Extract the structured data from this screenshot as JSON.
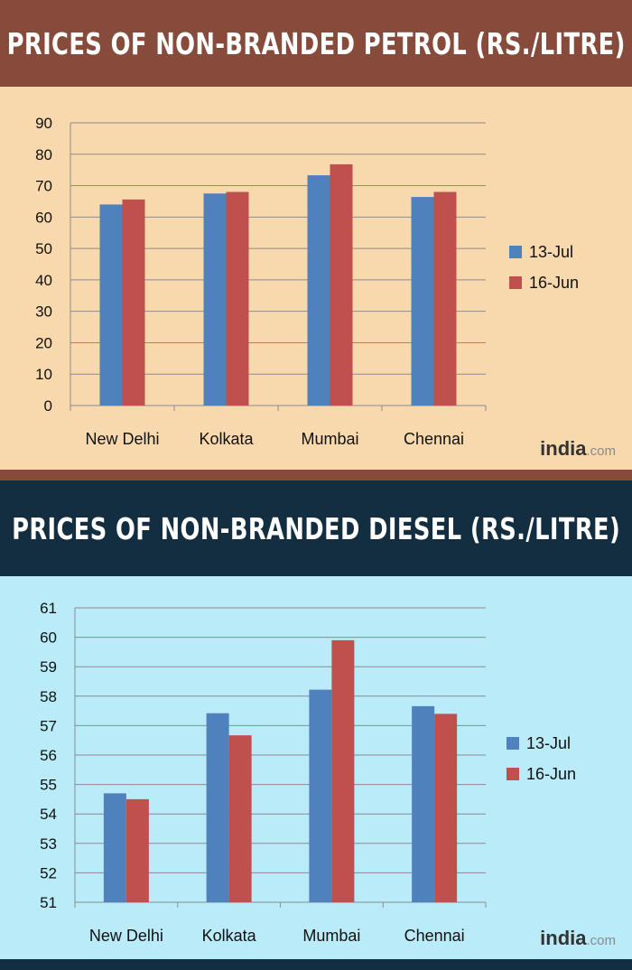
{
  "charts": {
    "petrol": {
      "title": "PRICES OF NON-BRANDED PETROL (RS./LITRE)",
      "logo": {
        "brand": "india",
        "tld": ".com"
      }
    },
    "diesel": {
      "title": "PRICES OF NON-BRANDED DIESEL  (RS./LITRE)",
      "logo": {
        "brand": "india",
        "tld": ".com"
      }
    }
  },
  "colors": {
    "series_13jul": "#4f81bd",
    "series_16jun": "#c0504d",
    "petrol_band": "#864b3a",
    "petrol_bg": "#f8d9ad",
    "diesel_band": "#132e40",
    "diesel_bg": "#b9ebf9",
    "gridline": "#8c8c8c"
  },
  "chart_data": [
    {
      "type": "bar",
      "title": "PRICES OF NON-BRANDED PETROL (RS./LITRE)",
      "categories": [
        "New Delhi",
        "Kolkata",
        "Mumbai",
        "Chennai"
      ],
      "series": [
        {
          "name": "13-Jul",
          "values": [
            64.0,
            67.5,
            73.3,
            66.4
          ]
        },
        {
          "name": "16-Jun",
          "values": [
            65.6,
            68.0,
            76.8,
            68.0
          ]
        }
      ],
      "ylim": [
        0,
        90
      ],
      "yticks": [
        0,
        10,
        20,
        30,
        40,
        50,
        60,
        70,
        80,
        90
      ],
      "grid": true,
      "legend": "right"
    },
    {
      "type": "bar",
      "title": "PRICES OF NON-BRANDED DIESEL  (RS./LITRE)",
      "categories": [
        "New Delhi",
        "Kolkata",
        "Mumbai",
        "Chennai"
      ],
      "series": [
        {
          "name": "13-Jul",
          "values": [
            54.7,
            57.42,
            58.22,
            57.66
          ]
        },
        {
          "name": "16-Jun",
          "values": [
            54.5,
            56.67,
            59.9,
            57.4
          ]
        }
      ],
      "ylim": [
        51,
        61
      ],
      "yticks": [
        51,
        52,
        53,
        54,
        55,
        56,
        57,
        58,
        59,
        60,
        61
      ],
      "grid": true,
      "legend": "right"
    }
  ]
}
